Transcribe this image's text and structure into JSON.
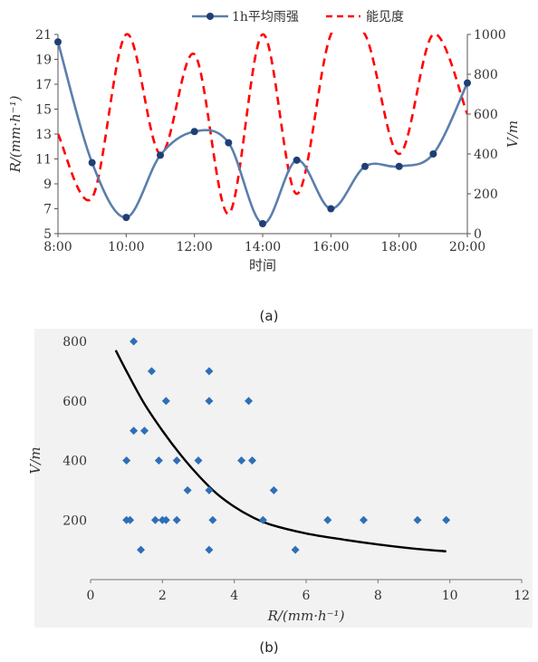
{
  "captions": {
    "a": "(a)",
    "b": "(b)"
  },
  "colors": {
    "rain": "#5b7fad",
    "rain_marker": "#1f3f74",
    "visibility": "#ff0000",
    "scatter": "#2e6fb7",
    "fit": "#000000",
    "panel_b_bg": "#f2f2f2"
  },
  "chart_data": [
    {
      "type": "line",
      "xlabel": "时间",
      "ylabel_left": "R/(mm·h⁻¹)",
      "ylabel_right": "V/m",
      "x_ticks": [
        "8:00",
        "10:00",
        "12:00",
        "14:00",
        "16:00",
        "18:00",
        "20:00"
      ],
      "ylim_left": [
        5,
        21
      ],
      "yticks_left": [
        5,
        7,
        9,
        11,
        13,
        15,
        17,
        19,
        21
      ],
      "ylim_right": [
        0,
        1000
      ],
      "yticks_right": [
        0,
        200,
        400,
        600,
        800,
        1000
      ],
      "legend_position": "top-center",
      "series": [
        {
          "name": "1h平均雨强",
          "axis": "left",
          "style": "solid-with-markers",
          "x": [
            "8:00",
            "9:00",
            "10:00",
            "11:00",
            "12:00",
            "13:00",
            "14:00",
            "15:00",
            "16:00",
            "17:00",
            "18:00",
            "19:00",
            "20:00"
          ],
          "values": [
            20.4,
            10.7,
            6.3,
            11.3,
            13.2,
            12.3,
            5.8,
            10.9,
            7.0,
            10.4,
            10.4,
            11.4,
            17.1
          ]
        },
        {
          "name": "能见度",
          "axis": "right",
          "style": "dashed",
          "x": [
            "8:00",
            "9:00",
            "10:00",
            "11:00",
            "12:00",
            "13:00",
            "14:00",
            "15:00",
            "16:00",
            "17:00",
            "18:00",
            "19:00",
            "20:00"
          ],
          "values": [
            500,
            180,
            1000,
            400,
            900,
            100,
            1000,
            200,
            1000,
            1000,
            400,
            1000,
            600
          ]
        }
      ]
    },
    {
      "type": "scatter",
      "xlabel": "R/(mm·h⁻¹)",
      "ylabel": "V/m",
      "xlim": [
        0,
        12
      ],
      "xticks": [
        0,
        2,
        4,
        6,
        8,
        10,
        12
      ],
      "ylim": [
        0,
        800
      ],
      "yticks": [
        200,
        400,
        600,
        800
      ],
      "points": [
        [
          1.2,
          800
        ],
        [
          1.7,
          700
        ],
        [
          2.1,
          600
        ],
        [
          3.3,
          700
        ],
        [
          3.3,
          600
        ],
        [
          4.4,
          600
        ],
        [
          1.2,
          500
        ],
        [
          1.5,
          500
        ],
        [
          1.0,
          400
        ],
        [
          1.9,
          400
        ],
        [
          2.4,
          400
        ],
        [
          3.0,
          400
        ],
        [
          4.2,
          400
        ],
        [
          4.5,
          400
        ],
        [
          2.7,
          300
        ],
        [
          3.3,
          300
        ],
        [
          5.1,
          300
        ],
        [
          1.0,
          200
        ],
        [
          1.1,
          200
        ],
        [
          1.8,
          200
        ],
        [
          2.0,
          200
        ],
        [
          2.1,
          200
        ],
        [
          2.4,
          200
        ],
        [
          3.4,
          200
        ],
        [
          4.8,
          200
        ],
        [
          6.6,
          200
        ],
        [
          7.6,
          200
        ],
        [
          9.1,
          200
        ],
        [
          9.9,
          200
        ],
        [
          1.4,
          100
        ],
        [
          3.3,
          100
        ],
        [
          5.7,
          100
        ]
      ],
      "fit_curve": {
        "x": [
          0.7,
          1.0,
          1.5,
          2.0,
          2.5,
          3.0,
          3.5,
          4.0,
          4.5,
          5.0,
          6.0,
          7.0,
          8.0,
          9.0,
          9.9
        ],
        "y": [
          770,
          700,
          590,
          500,
          420,
          350,
          290,
          245,
          210,
          185,
          155,
          135,
          118,
          104,
          95
        ]
      }
    }
  ]
}
